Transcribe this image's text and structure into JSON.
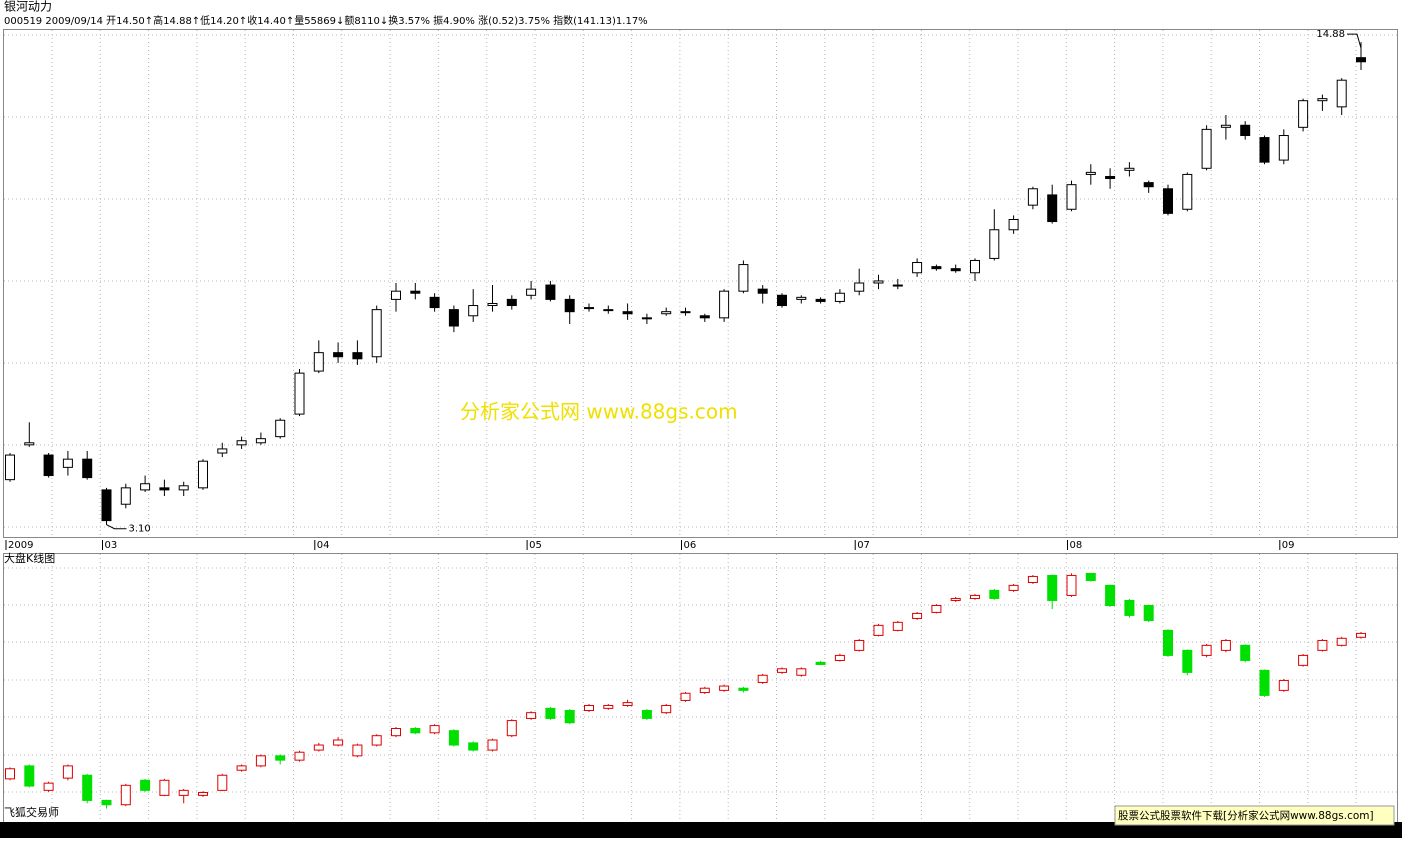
{
  "chart_data": [
    {
      "type": "candlestick",
      "title": "银河动力",
      "subtitle": "000519 2009/09/14 开14.50↑高14.88↑低14.20↑收14.40↑量55869↓额8110↓换3.57% 振4.90% 涨(0.52)3.75% 指数(141.13)1.17%",
      "categories": [
        "2009",
        null,
        null,
        null,
        null,
        "03",
        null,
        null,
        null,
        null,
        null,
        null,
        null,
        null,
        null,
        null,
        "04",
        null,
        null,
        null,
        null,
        null,
        null,
        null,
        null,
        null,
        null,
        "05",
        null,
        null,
        null,
        null,
        null,
        null,
        null,
        "06",
        null,
        null,
        null,
        null,
        null,
        null,
        null,
        null,
        "07",
        null,
        null,
        null,
        null,
        null,
        null,
        null,
        null,
        null,
        null,
        "08",
        null,
        null,
        null,
        null,
        null,
        null,
        null,
        null,
        null,
        null,
        "09",
        null,
        null,
        null,
        null
      ],
      "open": [
        4.2,
        5.05,
        4.8,
        4.5,
        4.7,
        3.95,
        3.6,
        3.95,
        4.0,
        3.95,
        4.0,
        4.85,
        5.05,
        5.1,
        5.25,
        5.8,
        6.85,
        7.3,
        7.3,
        7.2,
        8.6,
        8.8,
        8.65,
        8.35,
        8.2,
        8.45,
        8.6,
        8.7,
        8.95,
        8.6,
        8.4,
        8.35,
        8.3,
        8.15,
        8.25,
        8.3,
        8.2,
        8.15,
        8.8,
        8.85,
        8.7,
        8.6,
        8.6,
        8.55,
        8.8,
        9.0,
        8.95,
        9.25,
        9.4,
        9.35,
        9.25,
        9.6,
        10.3,
        10.9,
        11.15,
        10.8,
        11.65,
        11.6,
        11.75,
        11.45,
        11.3,
        10.8,
        11.8,
        12.8,
        12.85,
        12.55,
        12.0,
        12.8,
        13.45,
        13.3,
        14.5
      ],
      "high": [
        4.85,
        5.6,
        4.85,
        4.9,
        4.9,
        4.0,
        4.1,
        4.3,
        4.2,
        4.15,
        4.7,
        5.1,
        5.25,
        5.35,
        5.7,
        6.9,
        7.6,
        7.55,
        7.6,
        8.45,
        9.0,
        9.0,
        8.75,
        8.45,
        8.85,
        8.95,
        8.7,
        9.05,
        9.05,
        8.7,
        8.5,
        8.45,
        8.5,
        8.25,
        8.4,
        8.4,
        8.25,
        8.85,
        9.55,
        8.95,
        8.75,
        8.7,
        8.65,
        8.85,
        9.35,
        9.2,
        9.1,
        9.6,
        9.45,
        9.45,
        9.6,
        10.8,
        10.65,
        11.35,
        11.4,
        11.5,
        11.9,
        11.8,
        11.95,
        11.5,
        11.4,
        11.7,
        12.85,
        13.1,
        12.95,
        12.6,
        12.75,
        13.5,
        13.6,
        14.0,
        14.88
      ],
      "low": [
        4.15,
        5.0,
        4.25,
        4.3,
        4.2,
        3.1,
        3.5,
        3.9,
        3.8,
        3.8,
        3.95,
        4.75,
        4.95,
        5.05,
        5.2,
        5.75,
        6.8,
        7.05,
        7.0,
        7.05,
        8.3,
        8.6,
        8.3,
        7.8,
        8.05,
        8.3,
        8.35,
        8.6,
        8.55,
        8.0,
        8.3,
        8.25,
        8.1,
        8.0,
        8.2,
        8.2,
        8.05,
        8.05,
        8.75,
        8.5,
        8.4,
        8.5,
        8.5,
        8.5,
        8.7,
        8.85,
        8.85,
        9.15,
        9.3,
        9.25,
        9.05,
        9.55,
        10.2,
        10.8,
        10.45,
        10.75,
        11.4,
        11.3,
        11.6,
        11.2,
        10.65,
        10.75,
        11.75,
        12.5,
        12.5,
        11.9,
        11.9,
        12.7,
        13.2,
        13.1,
        14.2
      ],
      "close": [
        4.8,
        5.1,
        4.3,
        4.7,
        4.25,
        3.2,
        4.0,
        4.1,
        3.95,
        4.05,
        4.65,
        4.95,
        5.15,
        5.2,
        5.65,
        6.8,
        7.3,
        7.2,
        7.15,
        8.35,
        8.8,
        8.75,
        8.4,
        7.95,
        8.45,
        8.5,
        8.45,
        8.85,
        8.6,
        8.3,
        8.4,
        8.35,
        8.25,
        8.15,
        8.3,
        8.3,
        8.15,
        8.8,
        9.45,
        8.75,
        8.45,
        8.65,
        8.55,
        8.75,
        9.0,
        9.05,
        8.95,
        9.5,
        9.35,
        9.3,
        9.55,
        10.3,
        10.55,
        11.3,
        10.5,
        11.4,
        11.7,
        11.55,
        11.8,
        11.35,
        10.7,
        11.65,
        12.75,
        12.85,
        12.6,
        11.95,
        12.6,
        13.45,
        13.5,
        13.95,
        14.4
      ],
      "up_color": "#000000",
      "down_color": "#000000",
      "up_fill": "#ffffff",
      "down_fill": "#000000",
      "ylim": [
        2.8,
        15.2
      ],
      "annotations": [
        {
          "value": 14.88,
          "label": "14.88"
        },
        {
          "value": 3.1,
          "label": "3.10"
        }
      ]
    },
    {
      "type": "candlestick",
      "title": "大盘K线图",
      "open": [
        2050,
        2140,
        1970,
        2055,
        2075,
        1900,
        1870,
        2040,
        1935,
        1935,
        1935,
        1970,
        2110,
        2140,
        2210,
        2180,
        2250,
        2285,
        2210,
        2285,
        2350,
        2400,
        2370,
        2385,
        2300,
        2250,
        2350,
        2470,
        2540,
        2525,
        2525,
        2540,
        2560,
        2525,
        2510,
        2595,
        2650,
        2665,
        2680,
        2720,
        2790,
        2770,
        2860,
        2873,
        2943,
        3047,
        3082,
        3165,
        3207,
        3290,
        3304,
        3360,
        3360,
        3415,
        3464,
        3325,
        3478,
        3395,
        3290,
        3255,
        3082,
        2943,
        2908,
        2943,
        2978,
        2804,
        2665,
        2839,
        2943,
        2978,
        3034
      ],
      "high": [
        2130,
        2150,
        2030,
        2150,
        2085,
        1905,
        2015,
        2050,
        2050,
        1980,
        1965,
        2085,
        2150,
        2220,
        2220,
        2245,
        2300,
        2340,
        2295,
        2360,
        2410,
        2410,
        2430,
        2395,
        2310,
        2330,
        2465,
        2520,
        2550,
        2535,
        2570,
        2570,
        2600,
        2535,
        2570,
        2655,
        2690,
        2705,
        2690,
        2780,
        2825,
        2825,
        2870,
        2920,
        3022,
        3127,
        3148,
        3210,
        3265,
        3315,
        3335,
        3370,
        3405,
        3467,
        3470,
        3478,
        3478,
        3400,
        3300,
        3260,
        3090,
        2950,
        2988,
        3022,
        2985,
        2810,
        2744,
        2918,
        3022,
        3037,
        3071
      ],
      "low": [
        2040,
        1990,
        1960,
        2040,
        1880,
        1844,
        1860,
        1960,
        1930,
        1880,
        1925,
        1965,
        2100,
        2130,
        2150,
        2170,
        2240,
        2275,
        2200,
        2275,
        2340,
        2360,
        2360,
        2275,
        2240,
        2240,
        2340,
        2460,
        2460,
        2430,
        2515,
        2530,
        2550,
        2460,
        2500,
        2585,
        2640,
        2655,
        2650,
        2710,
        2780,
        2760,
        2840,
        2865,
        2935,
        3040,
        3075,
        3155,
        3200,
        3280,
        3295,
        3295,
        3350,
        3405,
        3230,
        3315,
        3420,
        3245,
        3170,
        3140,
        2898,
        2770,
        2895,
        2930,
        2860,
        2620,
        2655,
        2830,
        2935,
        2970,
        3025
      ],
      "close": [
        2120,
        2000,
        2020,
        2140,
        1900,
        1870,
        2005,
        1970,
        2040,
        1970,
        1955,
        2075,
        2140,
        2210,
        2180,
        2235,
        2285,
        2320,
        2285,
        2350,
        2400,
        2370,
        2420,
        2285,
        2250,
        2320,
        2455,
        2510,
        2470,
        2440,
        2560,
        2560,
        2580,
        2470,
        2560,
        2645,
        2680,
        2695,
        2665,
        2770,
        2815,
        2815,
        2845,
        2908,
        3012,
        3117,
        3138,
        3200,
        3255,
        3304,
        3325,
        3304,
        3395,
        3457,
        3290,
        3464,
        3429,
        3255,
        3186,
        3151,
        2908,
        2790,
        2978,
        3012,
        2873,
        2630,
        2734,
        2908,
        3012,
        3027,
        3061
      ],
      "up_color": "#e00000",
      "down_color": "#00e000",
      "up_fill": "#ffffff",
      "down_fill": "#00e000",
      "ylim": [
        1750,
        3620
      ]
    }
  ],
  "footer": {
    "left": "飞狐交易师",
    "ad": "股票公式股票软件下载[分析家公式网www.88gs.com]",
    "watermark": "分析家公式网 www.88gs.com"
  }
}
